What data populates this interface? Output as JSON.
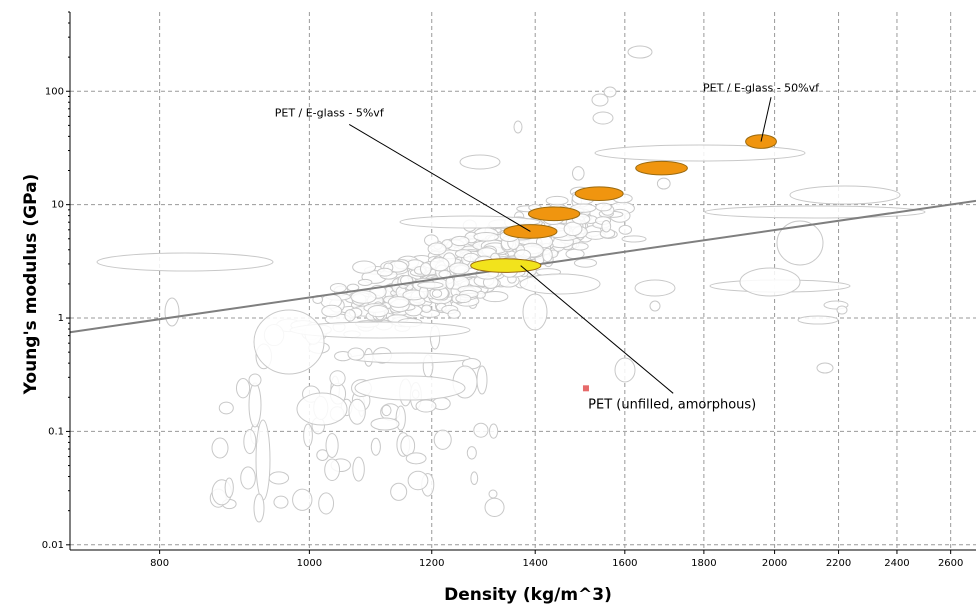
{
  "chart_data": {
    "type": "scatter",
    "title": "",
    "xlabel": "Density (kg/m^3)",
    "ylabel": "Young's modulus (GPa)",
    "x_scale": "log",
    "y_scale": "log",
    "xlim": [
      700,
      2700
    ],
    "ylim": [
      0.009,
      500
    ],
    "x_ticks": [
      800,
      1000,
      1200,
      1400,
      1600,
      1800,
      2000,
      2200,
      2400,
      2600
    ],
    "y_ticks": [
      0.01,
      0.1,
      1,
      10,
      100
    ],
    "y_tick_labels": [
      "0.01",
      "0.1",
      "1",
      "10",
      "100"
    ],
    "grid": true,
    "guide_line": {
      "from": [
        700,
        0.75
      ],
      "to": [
        2700,
        10.8
      ]
    },
    "highlight_series": [
      {
        "x": 1340,
        "y": 2.9,
        "rx": 70,
        "ry": 0.42,
        "color": "#f2e31c"
      },
      {
        "x": 1390,
        "y": 5.8,
        "rx": 55,
        "ry": 0.42,
        "color": "#f0950f"
      },
      {
        "x": 1440,
        "y": 8.3,
        "rx": 55,
        "ry": 0.42,
        "color": "#f0950f"
      },
      {
        "x": 1540,
        "y": 12.5,
        "rx": 55,
        "ry": 0.42,
        "color": "#f0950f"
      },
      {
        "x": 1690,
        "y": 21,
        "rx": 65,
        "ry": 0.42,
        "color": "#f0950f"
      },
      {
        "x": 1960,
        "y": 36,
        "rx": 45,
        "ry": 0.42,
        "color": "#f0950f"
      }
    ],
    "point": {
      "x": 1510,
      "y": 0.24,
      "color": "#e66a6a"
    },
    "annotations": [
      {
        "text": "PET / E-glass - 5%vf",
        "text_x": 1030,
        "text_y": 60,
        "target_x": 1390,
        "target_y": 5.8,
        "size": "small"
      },
      {
        "text": "PET / E-glass - 50%vf",
        "text_x": 1960,
        "text_y": 100,
        "target_x": 1960,
        "target_y": 36,
        "size": "small"
      },
      {
        "text": "PET (unfilled, amorphous)",
        "text_x": 1515,
        "text_y": 0.24,
        "target_x": 1370,
        "target_y": 2.9,
        "size": "big"
      }
    ]
  },
  "colors": {
    "background_bubble_stroke": "#c8c8c8",
    "guide_line": "#7f7f7f",
    "grid": "#9a9a9a"
  }
}
